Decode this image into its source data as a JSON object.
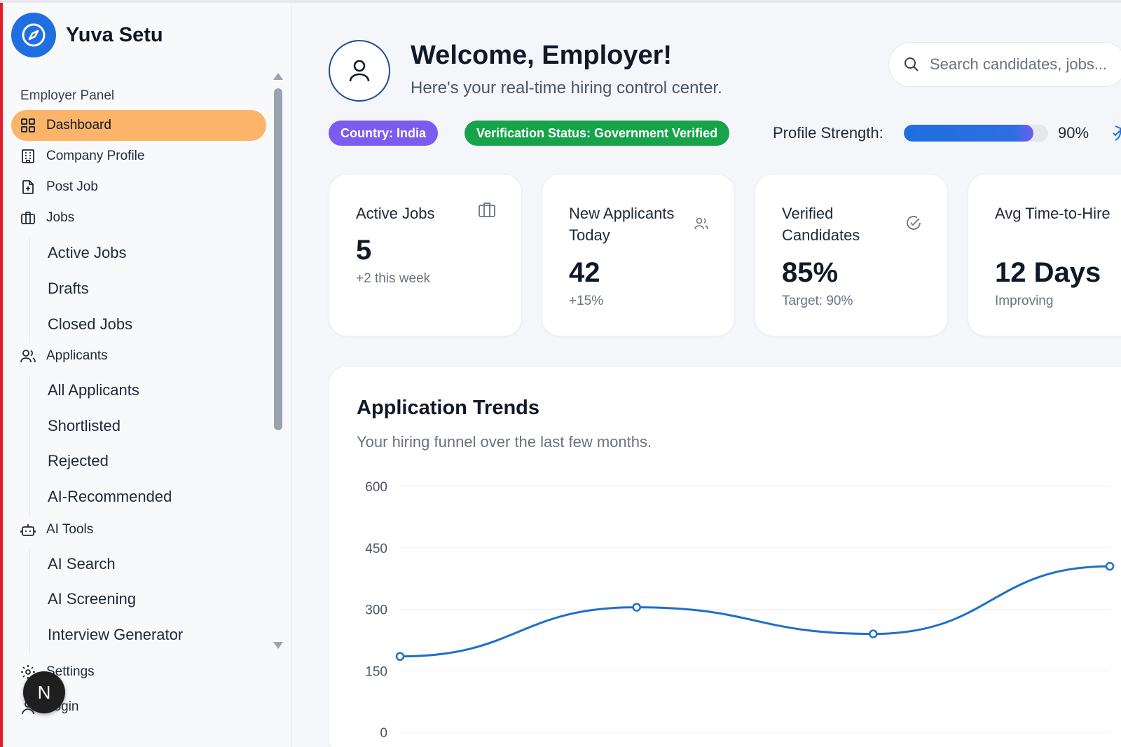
{
  "brand": {
    "name": "Yuva Setu"
  },
  "sidebar": {
    "panel_label": "Employer Panel",
    "items": [
      {
        "label": "Dashboard",
        "icon": "dashboard-grid-icon",
        "active": true
      },
      {
        "label": "Company Profile",
        "icon": "building-icon"
      },
      {
        "label": "Post Job",
        "icon": "file-plus-icon"
      },
      {
        "label": "Jobs",
        "icon": "briefcase-icon"
      },
      {
        "label": "Applicants",
        "icon": "users-icon"
      },
      {
        "label": "AI Tools",
        "icon": "robot-icon"
      },
      {
        "label": "Settings",
        "icon": "gear-icon"
      },
      {
        "label": "Login",
        "icon": "user-icon"
      }
    ],
    "jobs_sub": [
      "Active Jobs",
      "Drafts",
      "Closed Jobs"
    ],
    "applicants_sub": [
      "All Applicants",
      "Shortlisted",
      "Rejected",
      "AI-Recommended"
    ],
    "ai_sub": [
      "AI Search",
      "AI Screening",
      "Interview Generator"
    ],
    "avatar_letter": "N"
  },
  "header": {
    "welcome": "Welcome, Employer!",
    "subtitle": "Here's your real-time hiring control center.",
    "search_placeholder": "Search candidates, jobs...",
    "country_badge": "Country: India",
    "verification_badge": "Verification Status: Government Verified",
    "profile_strength_label": "Profile Strength:",
    "profile_strength_value": "90%",
    "profile_strength_fraction": 0.9
  },
  "stats": [
    {
      "title": "Active Jobs",
      "value": "5",
      "sub": "+2 this week",
      "icon": "briefcase-icon"
    },
    {
      "title": "New Applicants Today",
      "value": "42",
      "sub": "+15%",
      "icon": "users-icon"
    },
    {
      "title": "Verified Candidates",
      "value": "85%",
      "sub": "Target: 90%",
      "icon": "check-circle-icon"
    },
    {
      "title": "Avg Time-to-Hire",
      "value": "12 Days",
      "sub": "Improving",
      "icon": "clock-icon"
    }
  ],
  "trends": {
    "title": "Application Trends",
    "subtitle": "Your hiring funnel over the last few months."
  },
  "chart_data": {
    "type": "line",
    "title": "Application Trends",
    "y_ticks": [
      "600",
      "450",
      "300",
      "150",
      "0"
    ],
    "ylim": [
      0,
      600
    ],
    "series": [
      {
        "values": [
          185,
          305,
          240,
          405
        ],
        "color": "#1f6fc8"
      }
    ],
    "grid": true
  }
}
